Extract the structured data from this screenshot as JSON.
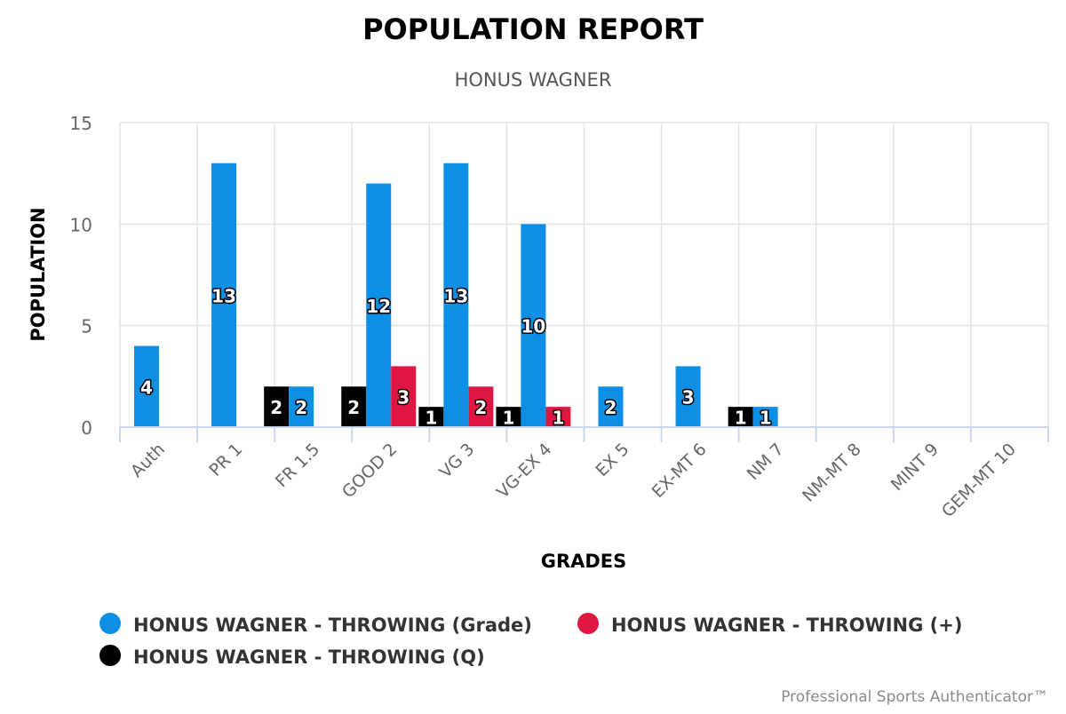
{
  "chart_data": {
    "type": "bar",
    "title": "POPULATION REPORT",
    "subtitle": "HONUS WAGNER",
    "xlabel": "GRADES",
    "ylabel": "POPULATION",
    "ylim": [
      0,
      15
    ],
    "yticks": [
      0,
      5,
      10,
      15
    ],
    "grid": true,
    "legend_position": "bottom-left",
    "categories": [
      "Auth",
      "PR 1",
      "FR 1.5",
      "GOOD 2",
      "VG 3",
      "VG-EX 4",
      "EX 5",
      "EX-MT 6",
      "NM 7",
      "NM-MT 8",
      "MINT 9",
      "GEM-MT 10"
    ],
    "series": [
      {
        "name": "HONUS WAGNER - THROWING (Q)",
        "color": "#000000",
        "values": [
          0,
          0,
          2,
          2,
          1,
          1,
          0,
          0,
          1,
          0,
          0,
          0
        ]
      },
      {
        "name": "HONUS WAGNER - THROWING (Grade)",
        "color": "#0d8fe5",
        "values": [
          4,
          13,
          2,
          12,
          13,
          10,
          2,
          3,
          1,
          0,
          0,
          0
        ]
      },
      {
        "name": "HONUS WAGNER - THROWING (+)",
        "color": "#dd1741",
        "values": [
          0,
          0,
          0,
          3,
          2,
          1,
          0,
          0,
          0,
          0,
          0,
          0
        ]
      }
    ],
    "legend_order": [
      1,
      2,
      0
    ],
    "credit": "Professional Sports Authenticator™"
  }
}
